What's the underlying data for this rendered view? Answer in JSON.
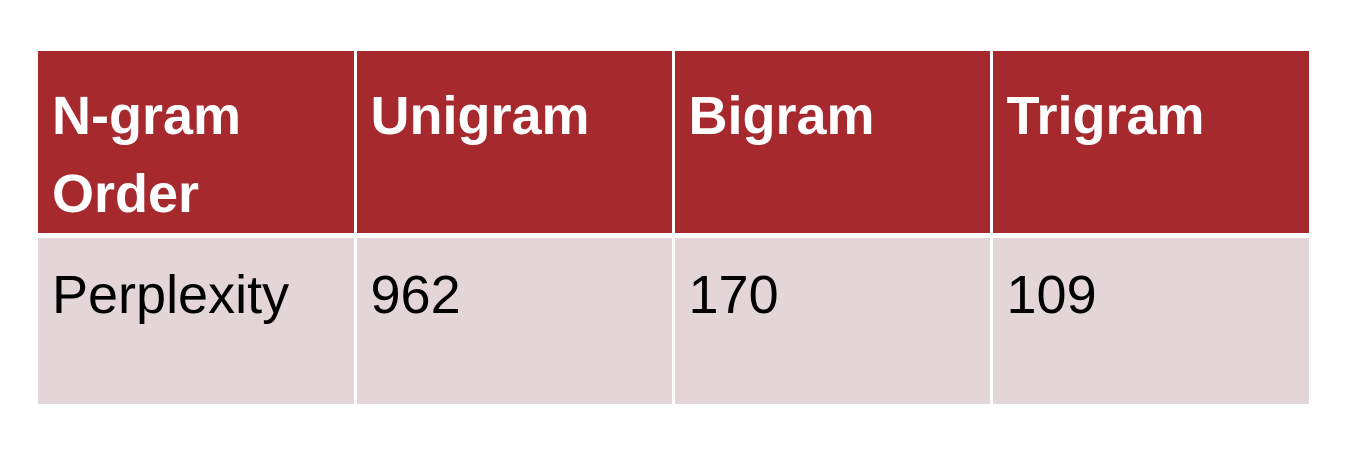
{
  "table": {
    "headers": [
      "N-gram Order",
      "Unigram",
      "Bigram",
      "Trigram"
    ],
    "rows": [
      [
        "Perplexity",
        "962",
        "170",
        "109"
      ]
    ]
  },
  "colors": {
    "header_background": "#a6292e",
    "header_text": "#ffffff",
    "body_background": "#e4d6d8",
    "body_text": "#000000"
  }
}
